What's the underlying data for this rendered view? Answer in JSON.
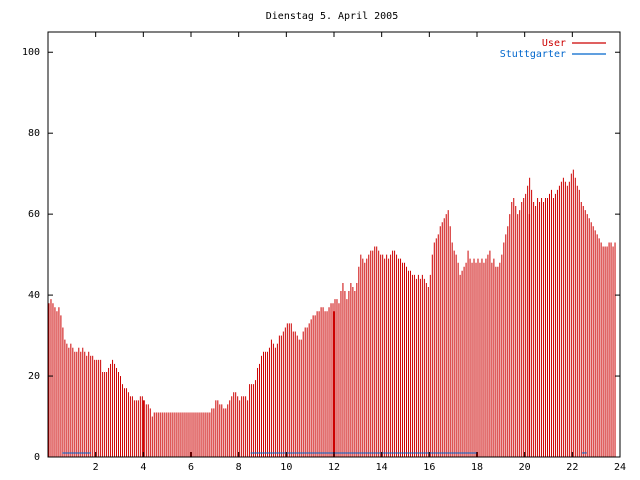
{
  "chart_data": {
    "type": "bar",
    "title": "Dienstag 5. April 2005",
    "xlabel": "",
    "ylabel": "",
    "xlim": [
      0,
      24
    ],
    "ylim": [
      0,
      105
    ],
    "x_ticks": [
      "2",
      "4",
      "6",
      "8",
      "10",
      "12",
      "14",
      "16",
      "18",
      "20",
      "22",
      "24"
    ],
    "y_ticks": [
      "0",
      "20",
      "40",
      "60",
      "80",
      "100"
    ],
    "grid": false,
    "legend_position": "top-right",
    "series": [
      {
        "name": "User",
        "color": "#cc0000",
        "points_per_hour": 12,
        "values": [
          38,
          39,
          38,
          37,
          36,
          37,
          35,
          32,
          29,
          28,
          27,
          28,
          27,
          26,
          26,
          27,
          26,
          27,
          26,
          25,
          26,
          25,
          25,
          24,
          24,
          24,
          24,
          21,
          21,
          21,
          22,
          23,
          24,
          23,
          22,
          21,
          20,
          18,
          17,
          17,
          16,
          15,
          15,
          14,
          14,
          14,
          15,
          15,
          14,
          13,
          13,
          12,
          10,
          11,
          11,
          11,
          11,
          11,
          11,
          11,
          11,
          11,
          11,
          11,
          11,
          11,
          11,
          11,
          11,
          11,
          11,
          11,
          11,
          11,
          11,
          11,
          11,
          11,
          11,
          11,
          11,
          11,
          12,
          12,
          14,
          14,
          13,
          13,
          12,
          12,
          13,
          14,
          15,
          16,
          16,
          15,
          14,
          15,
          15,
          15,
          14,
          18,
          18,
          18,
          19,
          22,
          23,
          25,
          26,
          26,
          26,
          27,
          29,
          28,
          27,
          28,
          30,
          30,
          31,
          32,
          33,
          33,
          33,
          31,
          31,
          30,
          29,
          29,
          31,
          32,
          32,
          33,
          34,
          35,
          35,
          36,
          36,
          37,
          37,
          36,
          36,
          37,
          38,
          38,
          39,
          39,
          38,
          41,
          43,
          41,
          39,
          41,
          43,
          42,
          41,
          43,
          47,
          50,
          49,
          48,
          49,
          50,
          51,
          51,
          52,
          52,
          51,
          50,
          50,
          49,
          50,
          49,
          50,
          51,
          51,
          50,
          49,
          49,
          48,
          48,
          47,
          46,
          46,
          45,
          45,
          44,
          45,
          44,
          45,
          44,
          43,
          42,
          45,
          50,
          53,
          54,
          55,
          57,
          58,
          59,
          60,
          61,
          57,
          53,
          51,
          50,
          48,
          45,
          46,
          47,
          48,
          51,
          49,
          48,
          49,
          48,
          49,
          48,
          49,
          48,
          49,
          50,
          51,
          48,
          49,
          47,
          47,
          48,
          50,
          53,
          55,
          57,
          60,
          63,
          64,
          62,
          60,
          61,
          63,
          64,
          65,
          67,
          69,
          66,
          63,
          62,
          64,
          63,
          64,
          63,
          64,
          64,
          65,
          66,
          64,
          65,
          66,
          67,
          68,
          69,
          68,
          67,
          68,
          70,
          71,
          69,
          67,
          66,
          63,
          62,
          61,
          60,
          59,
          58,
          57,
          56,
          55,
          54,
          53,
          52,
          52,
          52,
          53,
          53,
          52,
          53
        ]
      },
      {
        "name": "Stuttgarter",
        "color": "#0066cc"
      }
    ],
    "spikes": [
      {
        "x": 4.0,
        "value": 14
      },
      {
        "x": 12.0,
        "value": 36
      },
      {
        "x": 20.2,
        "value": 60
      }
    ],
    "baseline_segments": [
      {
        "x0": 0.6,
        "x1": 1.8,
        "value": 1
      },
      {
        "x0": 8.5,
        "x1": 18.0,
        "value": 1
      },
      {
        "x0": 22.4,
        "x1": 22.6,
        "value": 1
      }
    ]
  }
}
